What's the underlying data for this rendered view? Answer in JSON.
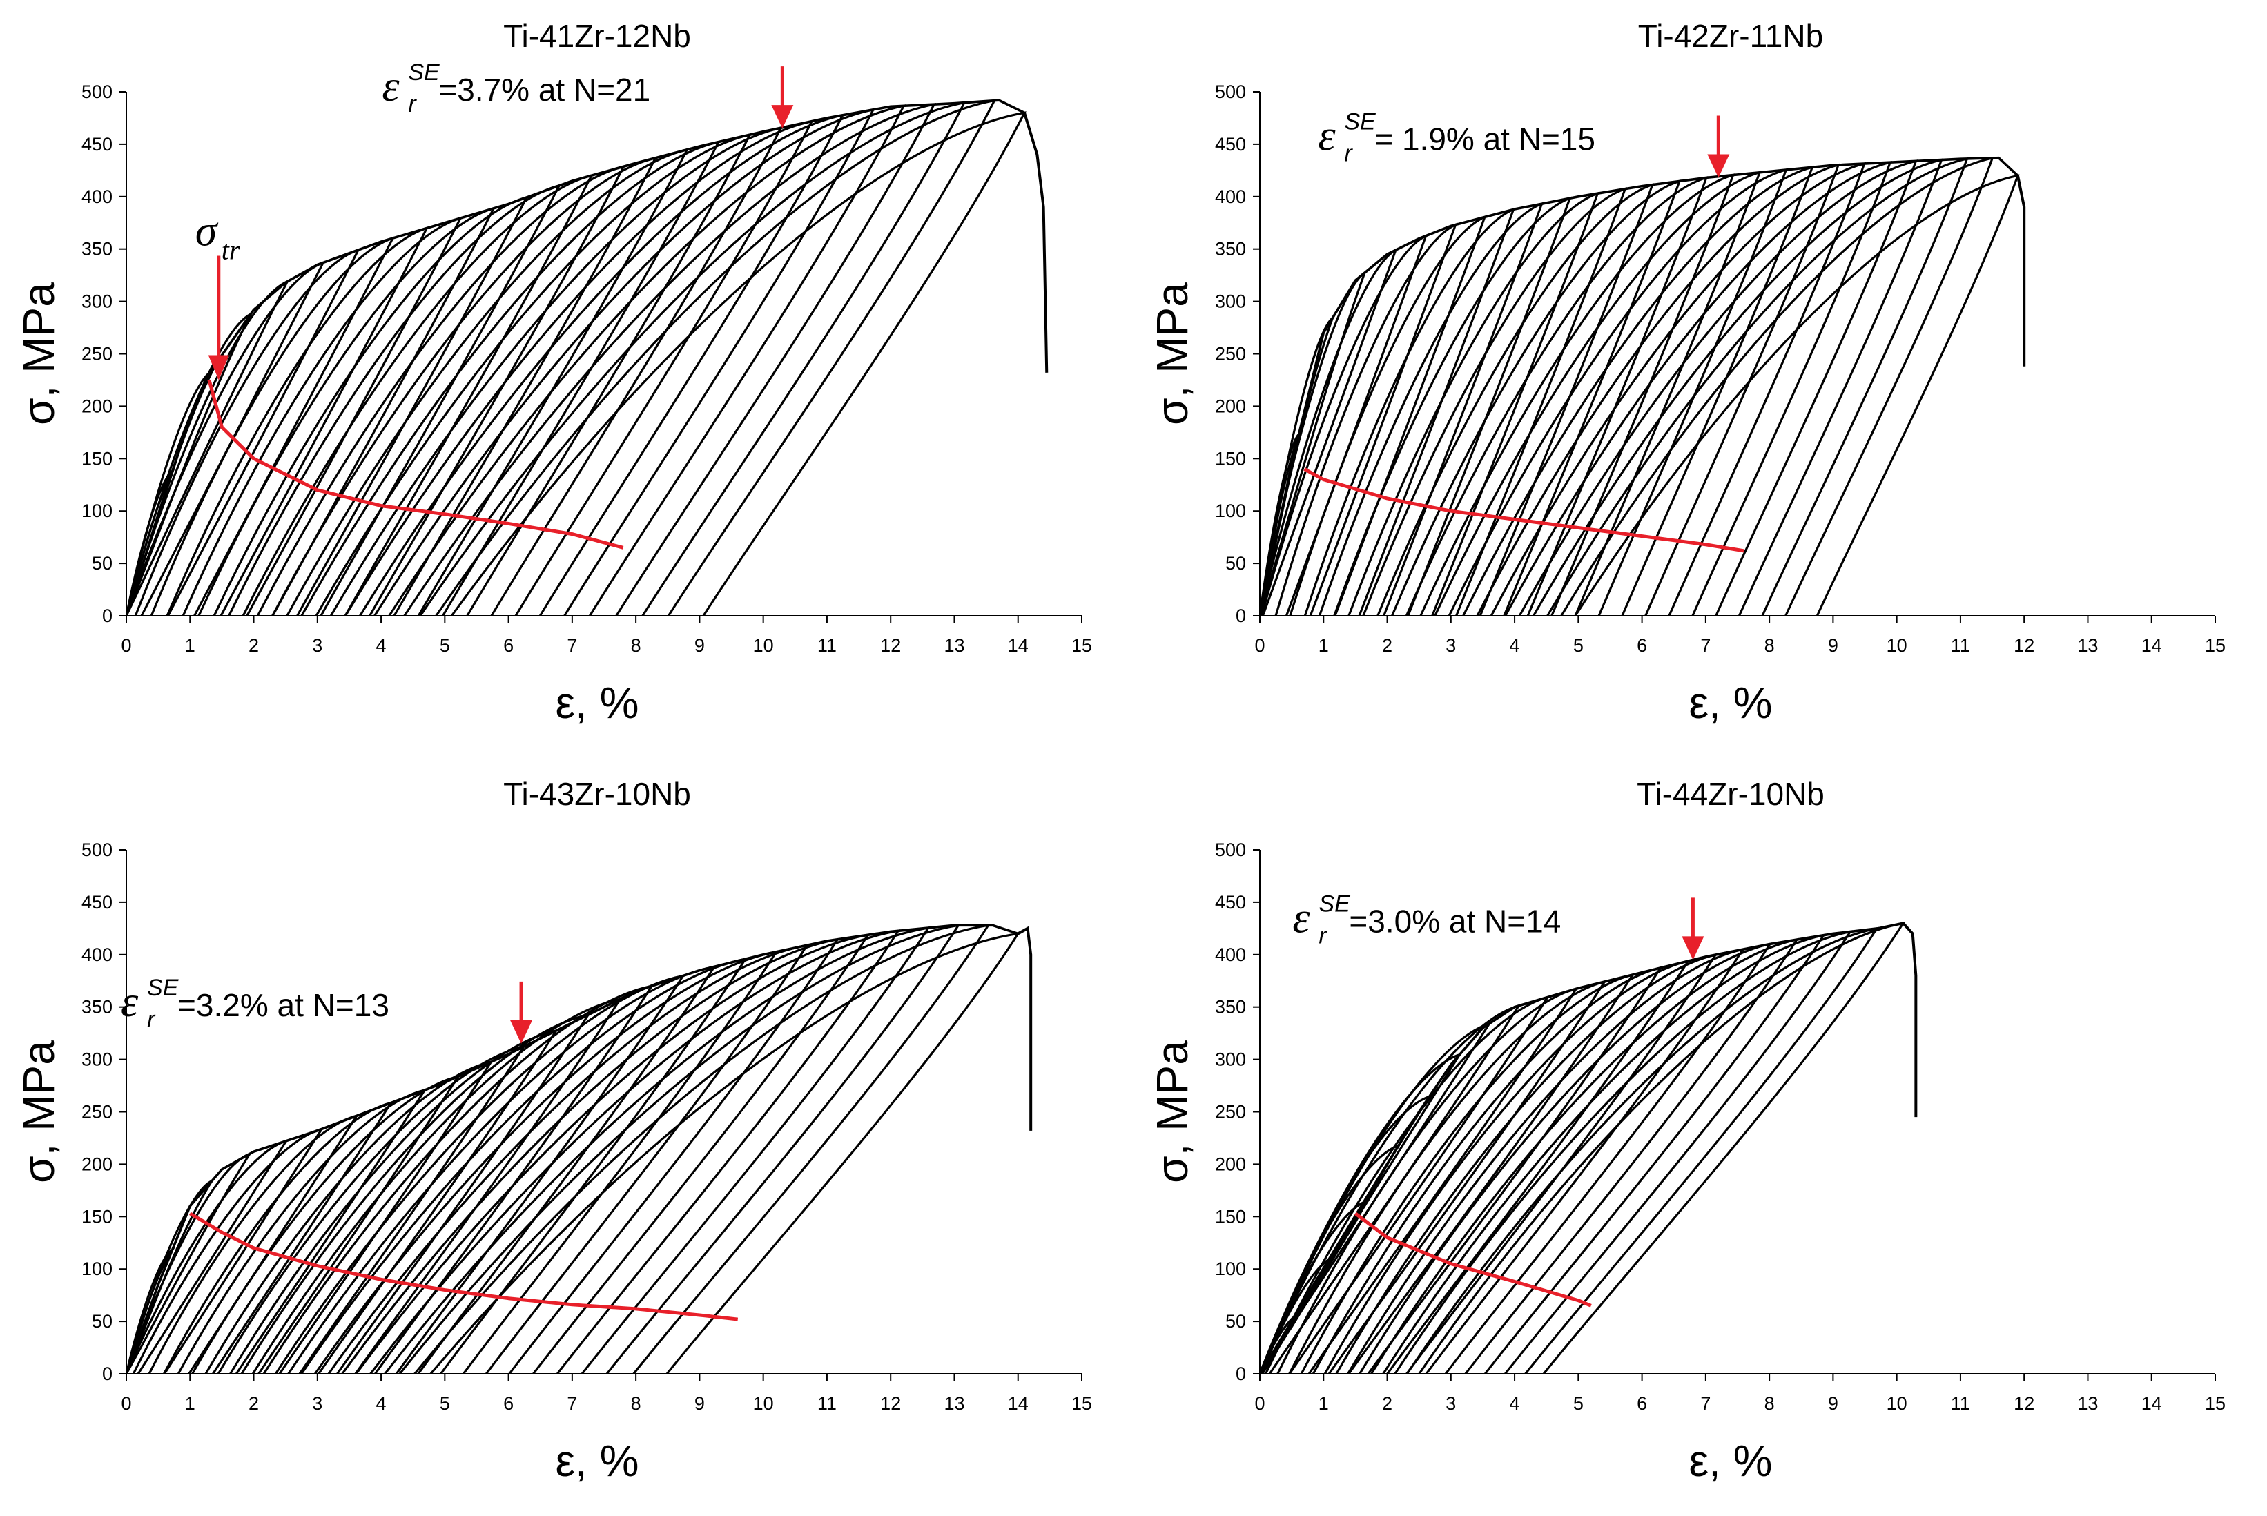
{
  "figure": {
    "background": "#ffffff",
    "curve_color": "#000000",
    "annotation_color": "#e8202a"
  },
  "chart_data": [
    {
      "type": "line",
      "title": "Ti-41Zr-12Nb",
      "xlabel": "ε, %",
      "ylabel": "σ, MPa",
      "xlim": [
        0,
        15
      ],
      "ylim": [
        0,
        500
      ],
      "xticks": [
        "0",
        "1",
        "2",
        "3",
        "4",
        "5",
        "6",
        "7",
        "8",
        "9",
        "10",
        "11",
        "12",
        "13",
        "14",
        "15"
      ],
      "yticks": [
        "0",
        "50",
        "100",
        "150",
        "200",
        "250",
        "300",
        "350",
        "400",
        "450",
        "500"
      ],
      "cycles": 27,
      "envelope": {
        "x": [
          0,
          0.5,
          1.0,
          1.4,
          2.0,
          2.5,
          3.0,
          4.0,
          5.0,
          6.0,
          7.0,
          8.0,
          9.0,
          10.0,
          11.0,
          12.0,
          13.0,
          13.7,
          14.1
        ],
        "y": [
          0,
          95,
          190,
          240,
          292,
          318,
          335,
          357,
          375,
          393,
          415,
          432,
          448,
          462,
          475,
          486,
          489,
          492,
          480
        ]
      },
      "fracture": {
        "x": [
          14.1,
          14.3,
          14.4,
          14.45
        ],
        "y": [
          480,
          440,
          390,
          232
        ]
      },
      "unload_modulus": 200,
      "sigma_tr_curve": {
        "x": [
          1.3,
          1.5,
          2.0,
          3.0,
          4.0,
          5.0,
          6.0,
          7.0,
          7.8
        ],
        "y": [
          225,
          180,
          150,
          120,
          105,
          97,
          88,
          78,
          65
        ]
      },
      "annotation": {
        "symbol": "ε",
        "sub": "r",
        "sup": "SE",
        "text": "=3.7% at N=21",
        "arrow_x": 10.3,
        "arrow_y": 465
      },
      "sigma_tr": {
        "symbol": "σ",
        "sub": "tr",
        "arrow_x": 1.45,
        "arrow_y": 225
      }
    },
    {
      "type": "line",
      "title": "Ti-42Zr-11Nb",
      "xlabel": "ε, %",
      "ylabel": "σ, MPa",
      "xlim": [
        0,
        15
      ],
      "ylim": [
        0,
        500
      ],
      "xticks": [
        "0",
        "1",
        "2",
        "3",
        "4",
        "5",
        "6",
        "7",
        "8",
        "9",
        "10",
        "11",
        "12",
        "13",
        "14",
        "15"
      ],
      "yticks": [
        "0",
        "50",
        "100",
        "150",
        "200",
        "250",
        "300",
        "350",
        "400",
        "450",
        "500"
      ],
      "cycles": 27,
      "envelope": {
        "x": [
          0,
          0.5,
          1.0,
          1.5,
          2.0,
          2.5,
          3.0,
          4.0,
          5.0,
          6.0,
          7.0,
          8.0,
          9.0,
          10.0,
          11.0,
          11.6,
          11.9
        ],
        "y": [
          0,
          145,
          270,
          320,
          345,
          360,
          372,
          388,
          400,
          410,
          418,
          424,
          430,
          433,
          436,
          437,
          420
        ]
      },
      "fracture": {
        "x": [
          11.9,
          12.0,
          12.0
        ],
        "y": [
          420,
          390,
          238
        ]
      },
      "unload_modulus": 280,
      "sigma_tr_curve": {
        "x": [
          0.7,
          1.0,
          2.0,
          3.0,
          4.0,
          5.0,
          6.0,
          7.0,
          7.6
        ],
        "y": [
          140,
          130,
          112,
          100,
          92,
          84,
          76,
          68,
          62
        ]
      },
      "annotation": {
        "symbol": "ε",
        "sub": "r",
        "sup": "SE",
        "text": "= 1.9% at N=15",
        "arrow_x": 7.2,
        "arrow_y": 418
      }
    },
    {
      "type": "line",
      "title": "Ti-43Zr-10Nb",
      "xlabel": "ε, %",
      "ylabel": "σ, MPa",
      "xlim": [
        0,
        15
      ],
      "ylim": [
        0,
        500
      ],
      "xticks": [
        "0",
        "1",
        "2",
        "3",
        "4",
        "5",
        "6",
        "7",
        "8",
        "9",
        "10",
        "11",
        "12",
        "13",
        "14",
        "15"
      ],
      "yticks": [
        "0",
        "50",
        "100",
        "150",
        "200",
        "250",
        "300",
        "350",
        "400",
        "450",
        "500"
      ],
      "cycles": 27,
      "envelope": {
        "x": [
          0,
          0.5,
          1.0,
          1.5,
          2.0,
          3.0,
          4.0,
          5.0,
          6.0,
          7.0,
          8.0,
          9.0,
          10.0,
          11.0,
          12.0,
          13.0,
          13.6,
          14.0
        ],
        "y": [
          0,
          85,
          160,
          195,
          212,
          232,
          255,
          278,
          305,
          335,
          365,
          385,
          400,
          413,
          422,
          428,
          428,
          420
        ]
      },
      "fracture": {
        "x": [
          14.0,
          14.15,
          14.2,
          14.2
        ],
        "y": [
          420,
          425,
          400,
          232
        ]
      },
      "unload_modulus": 160,
      "sigma_tr_curve": {
        "x": [
          1.0,
          1.5,
          2.0,
          3.0,
          4.0,
          5.0,
          6.0,
          7.0,
          8.0,
          9.0,
          9.6
        ],
        "y": [
          153,
          135,
          120,
          103,
          90,
          80,
          72,
          66,
          62,
          56,
          52
        ]
      },
      "annotation": {
        "symbol": "ε",
        "sub": "r",
        "sup": "SE",
        "text": "=3.2% at N=13",
        "arrow_x": 6.2,
        "arrow_y": 315
      }
    },
    {
      "type": "line",
      "title": "Ti-44Zr-10Nb",
      "xlabel": "ε, %",
      "ylabel": "σ, MPa",
      "xlim": [
        0,
        15
      ],
      "ylim": [
        0,
        500
      ],
      "xticks": [
        "0",
        "1",
        "2",
        "3",
        "4",
        "5",
        "6",
        "7",
        "8",
        "9",
        "10",
        "11",
        "12",
        "13",
        "14",
        "15"
      ],
      "yticks": [
        "0",
        "50",
        "100",
        "150",
        "200",
        "250",
        "300",
        "350",
        "400",
        "450",
        "500"
      ],
      "cycles": 22,
      "envelope": {
        "x": [
          0,
          0.5,
          1.0,
          1.5,
          2.0,
          2.5,
          3.0,
          3.5,
          4.0,
          5.0,
          6.0,
          7.0,
          8.0,
          9.0,
          9.7,
          10.1
        ],
        "y": [
          0,
          45,
          95,
          145,
          200,
          250,
          295,
          330,
          350,
          368,
          383,
          398,
          410,
          420,
          425,
          430
        ]
      },
      "fracture": {
        "x": [
          10.1,
          10.25,
          10.3,
          10.3
        ],
        "y": [
          430,
          420,
          380,
          245
        ]
      },
      "unload_modulus": 160,
      "sigma_tr_curve": {
        "x": [
          1.5,
          2.0,
          3.0,
          4.0,
          5.0,
          5.2
        ],
        "y": [
          153,
          130,
          105,
          88,
          70,
          65
        ]
      },
      "annotation": {
        "symbol": "ε",
        "sub": "r",
        "sup": "SE",
        "text": "=3.0% at N=14",
        "arrow_x": 6.8,
        "arrow_y": 395
      }
    }
  ]
}
